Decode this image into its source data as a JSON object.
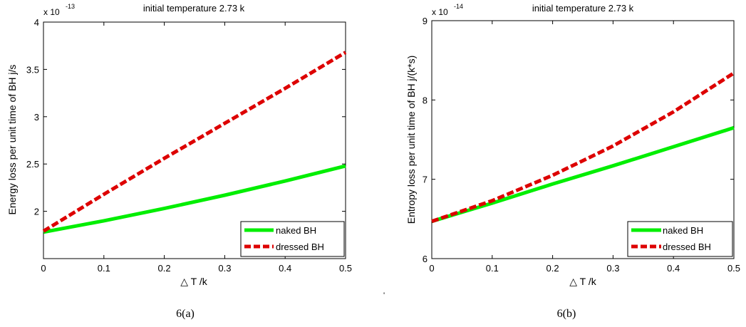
{
  "colors": {
    "naked": "#00ee00",
    "dressed": "#dd0000",
    "axis": "#000000"
  },
  "stray_mark": "'",
  "chart_data": [
    {
      "type": "line",
      "title": "initial temperature 2.73 k",
      "exponent_prefix": "x 10",
      "exponent": "-13",
      "xlabel": "△ T  /k",
      "ylabel": "Energy loss per unit time of BH  j/s",
      "xlim": [
        0,
        0.5
      ],
      "ylim": [
        1.5,
        4
      ],
      "x_ticks": [
        "0",
        "0.1",
        "0.2",
        "0.3",
        "0.4",
        "0.5"
      ],
      "y_tick_values": [
        2,
        2.5,
        3,
        3.5,
        4
      ],
      "y_ticks": [
        "2",
        "2.5",
        "3",
        "3.5",
        "4"
      ],
      "legend_placement": "bottom-right",
      "caption": "6(a)",
      "series": [
        {
          "name": "naked BH",
          "style": "solid",
          "x": [
            0,
            0.1,
            0.2,
            0.3,
            0.4,
            0.5
          ],
          "values": [
            1.78,
            1.9,
            2.03,
            2.17,
            2.32,
            2.48
          ]
        },
        {
          "name": "dressed BH",
          "style": "dashed",
          "x": [
            0,
            0.1,
            0.2,
            0.3,
            0.4,
            0.5
          ],
          "values": [
            1.79,
            2.18,
            2.56,
            2.93,
            3.3,
            3.68
          ]
        }
      ]
    },
    {
      "type": "line",
      "title": "initial temperature 2.73 k",
      "exponent_prefix": "x 10",
      "exponent": "-14",
      "xlabel": "△ T  /k",
      "ylabel": "Entropy loss per unit time of BH j/(k*s)",
      "xlim": [
        0,
        0.5
      ],
      "ylim": [
        6,
        9
      ],
      "x_ticks": [
        "0",
        "0.1",
        "0.2",
        "0.3",
        "0.4",
        "0.5"
      ],
      "y_tick_values": [
        6,
        7,
        8,
        9
      ],
      "y_ticks": [
        "6",
        "7",
        "8",
        "9"
      ],
      "legend_placement": "bottom-right",
      "caption": "6(b)",
      "series": [
        {
          "name": "naked BH",
          "style": "solid",
          "x": [
            0,
            0.1,
            0.2,
            0.3,
            0.4,
            0.5
          ],
          "values": [
            6.47,
            6.7,
            6.94,
            7.17,
            7.41,
            7.65
          ]
        },
        {
          "name": "dressed BH",
          "style": "dashed",
          "x": [
            0,
            0.1,
            0.2,
            0.3,
            0.4,
            0.5
          ],
          "values": [
            6.47,
            6.73,
            7.05,
            7.42,
            7.85,
            8.34
          ]
        }
      ]
    }
  ]
}
